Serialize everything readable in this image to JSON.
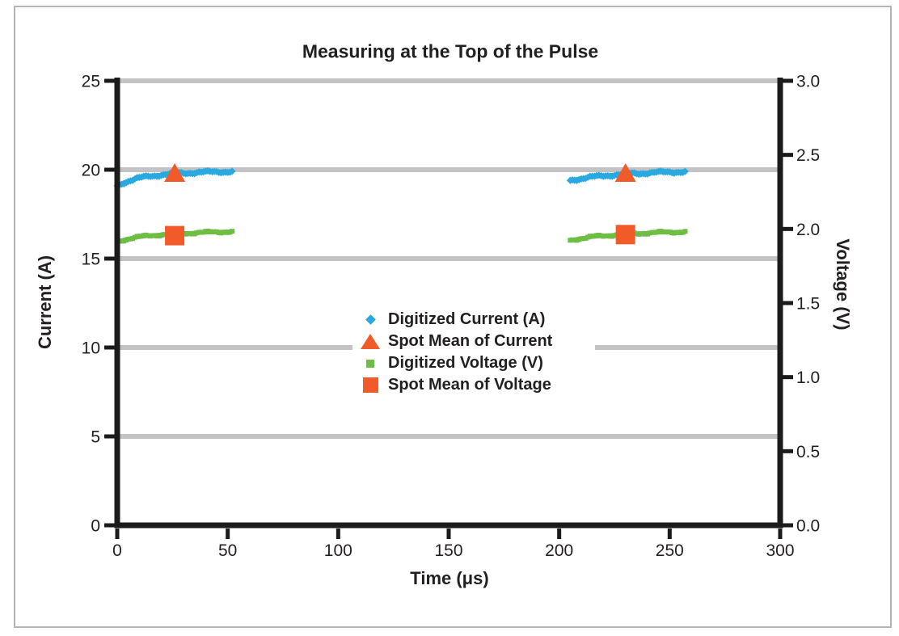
{
  "chart_data": {
    "type": "scatter",
    "title": "Measuring at the Top of the Pulse",
    "xlabel": "Time (μs)",
    "ylabel_left": "Current (A)",
    "ylabel_right": "Voltage (V)",
    "xlim": [
      0,
      300
    ],
    "ylim_left": [
      0,
      25
    ],
    "ylim_right": [
      0.0,
      3.0
    ],
    "x_ticks": [
      0,
      50,
      100,
      150,
      200,
      250,
      300
    ],
    "y_left_ticks": [
      0,
      5,
      10,
      15,
      20,
      25
    ],
    "y_right_ticks": [
      "0.0",
      "0.5",
      "1.0",
      "1.5",
      "2.0",
      "2.5",
      "3.0"
    ],
    "gridlines_left_values": [
      5,
      10,
      15,
      20,
      25
    ],
    "grid_on": true,
    "legend_position": "center",
    "colors": {
      "grid": "#c3c3c5",
      "axis": "#1b1b1b",
      "text": "#231F20"
    },
    "series": [
      {
        "id": "digitized-current",
        "name": "Digitized Current (A)",
        "axis": "left",
        "marker": "diamond",
        "color": "#29A9DF",
        "segments": [
          [
            [
              0,
              19.1
            ],
            [
              3,
              19.28
            ],
            [
              6,
              19.4
            ],
            [
              9,
              19.5
            ],
            [
              12,
              19.58
            ],
            [
              15,
              19.64
            ],
            [
              18,
              19.69
            ],
            [
              21,
              19.73
            ],
            [
              24,
              19.76
            ],
            [
              27,
              19.79
            ],
            [
              30,
              19.81
            ],
            [
              33,
              19.83
            ],
            [
              36,
              19.85
            ],
            [
              39,
              19.86
            ],
            [
              42,
              19.87
            ],
            [
              45,
              19.88
            ],
            [
              48,
              19.89
            ],
            [
              52,
              19.9
            ]
          ],
          [
            [
              205,
              19.4
            ],
            [
              209,
              19.49
            ],
            [
              213,
              19.56
            ],
            [
              217,
              19.62
            ],
            [
              221,
              19.67
            ],
            [
              225,
              19.71
            ],
            [
              229,
              19.75
            ],
            [
              233,
              19.78
            ],
            [
              237,
              19.8
            ],
            [
              241,
              19.83
            ],
            [
              245,
              19.85
            ],
            [
              249,
              19.86
            ],
            [
              253,
              19.88
            ],
            [
              257,
              19.89
            ]
          ]
        ]
      },
      {
        "id": "spot-mean-current",
        "name": "Spot Mean of Current",
        "axis": "left",
        "marker": "triangle",
        "color": "#F15B2A",
        "points": [
          [
            26,
            19.77
          ],
          [
            230,
            19.77
          ]
        ]
      },
      {
        "id": "digitized-voltage",
        "name": "Digitized Voltage (V)",
        "axis": "right",
        "marker": "square",
        "color": "#6EBE45",
        "segments": [
          [
            [
              0,
              1.915
            ],
            [
              4,
              1.931
            ],
            [
              8,
              1.942
            ],
            [
              12,
              1.95
            ],
            [
              16,
              1.957
            ],
            [
              20,
              1.962
            ],
            [
              24,
              1.966
            ],
            [
              28,
              1.969
            ],
            [
              32,
              1.972
            ],
            [
              36,
              1.975
            ],
            [
              40,
              1.977
            ],
            [
              44,
              1.979
            ],
            [
              48,
              1.981
            ],
            [
              52,
              1.983
            ]
          ],
          [
            [
              205,
              1.924
            ],
            [
              209,
              1.935
            ],
            [
              213,
              1.943
            ],
            [
              217,
              1.95
            ],
            [
              221,
              1.955
            ],
            [
              225,
              1.96
            ],
            [
              229,
              1.964
            ],
            [
              233,
              1.968
            ],
            [
              237,
              1.971
            ],
            [
              241,
              1.974
            ],
            [
              245,
              1.976
            ],
            [
              249,
              1.978
            ],
            [
              253,
              1.98
            ],
            [
              257,
              1.982
            ]
          ]
        ]
      },
      {
        "id": "spot-mean-voltage",
        "name": "Spot Mean of Voltage",
        "axis": "right",
        "marker": "square-large",
        "color": "#F15B2A",
        "points": [
          [
            26,
            1.955
          ],
          [
            230,
            1.962
          ]
        ]
      }
    ]
  }
}
